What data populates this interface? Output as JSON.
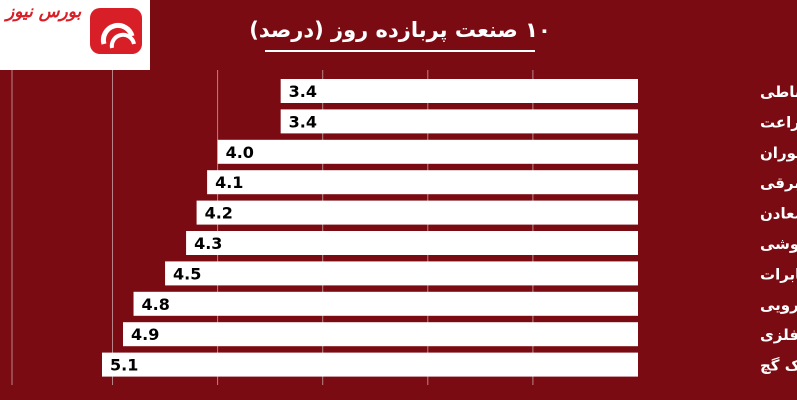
{
  "brand": {
    "logo_text": "بورس نیوز"
  },
  "chart_data": {
    "type": "bar",
    "orientation": "horizontal",
    "title": "۱۰ صنعت پربازده روز (درصد)",
    "categories": [
      "وسایل ارتباطی",
      "زراعت",
      "هتل و رستوران",
      "دستگاههای برقی",
      "استخراج سایر معادن",
      "عمده فروشی",
      "مخابرات",
      "دارویی",
      "کانی غیر فلزی",
      "سیمان آهک گچ"
    ],
    "values": [
      3.4,
      3.4,
      4.0,
      4.1,
      4.2,
      4.3,
      4.5,
      4.8,
      4.9,
      5.1
    ],
    "value_labels": [
      "3.4",
      "3.4",
      "4.0",
      "4.1",
      "4.2",
      "4.3",
      "4.5",
      "4.8",
      "4.9",
      "5.1"
    ],
    "xlim": [
      0,
      5.1
    ],
    "grid": true,
    "colors": {
      "background": "#7b0b12",
      "bar": "#ffffff",
      "text": "#ffffff",
      "label": "#000000",
      "grid": "#b8858a",
      "brand": "#d81e26"
    }
  }
}
